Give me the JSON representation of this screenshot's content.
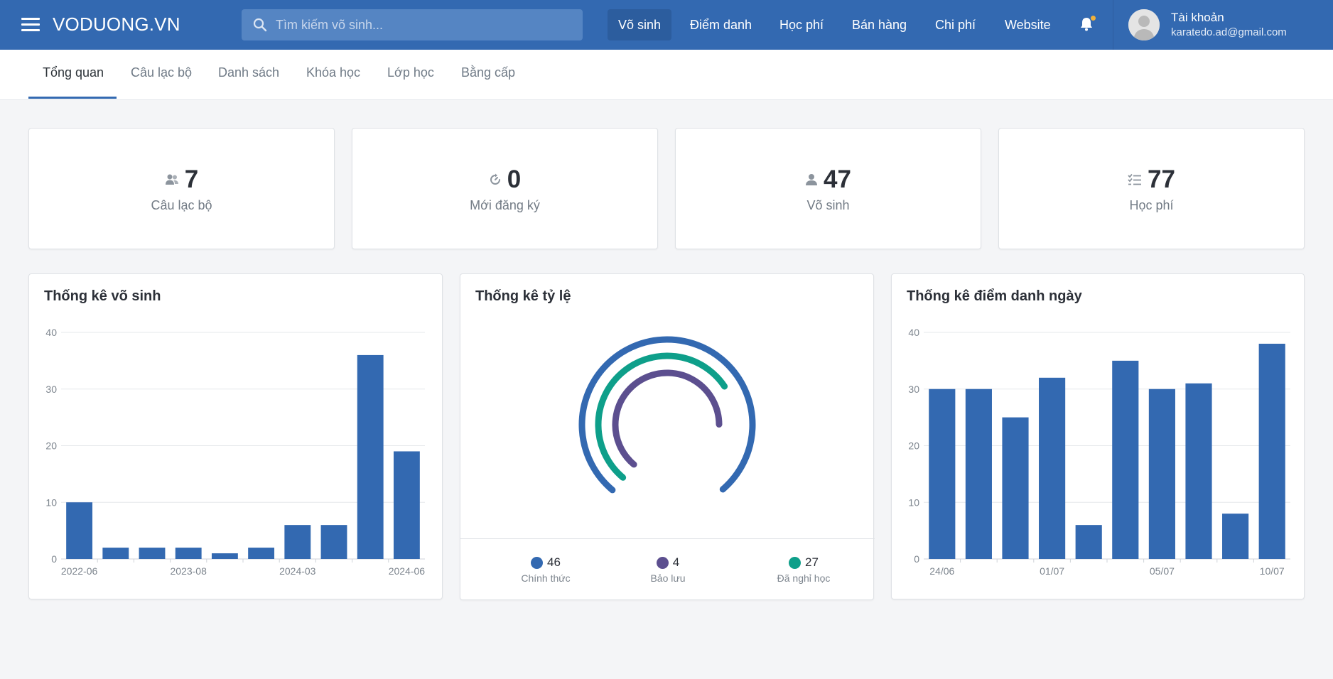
{
  "app": {
    "brand": "VODUONG.VN"
  },
  "search": {
    "placeholder": "Tìm kiếm võ sinh..."
  },
  "nav": {
    "items": [
      {
        "label": "Võ sinh",
        "active": true
      },
      {
        "label": "Điểm danh"
      },
      {
        "label": "Học phí"
      },
      {
        "label": "Bán hàng"
      },
      {
        "label": "Chi phí"
      },
      {
        "label": "Website"
      }
    ]
  },
  "account": {
    "name": "Tài khoản",
    "email": "karatedo.ad@gmail.com"
  },
  "tabs": [
    {
      "label": "Tổng quan",
      "active": true
    },
    {
      "label": "Câu lạc bộ"
    },
    {
      "label": "Danh sách"
    },
    {
      "label": "Khóa học"
    },
    {
      "label": "Lớp học"
    },
    {
      "label": "Bằng cấp"
    }
  ],
  "stats": [
    {
      "value": "7",
      "label": "Câu lạc bộ",
      "icon": "users-icon"
    },
    {
      "value": "0",
      "label": "Mới đăng ký",
      "icon": "refresh-icon"
    },
    {
      "value": "47",
      "label": "Võ sinh",
      "icon": "user-icon"
    },
    {
      "value": "77",
      "label": "Học phí",
      "icon": "list-check-icon"
    }
  ],
  "colors": {
    "primary": "#3369b1",
    "purple": "#5c4f8f",
    "teal": "#0e9f8a"
  },
  "chart_data": [
    {
      "type": "bar",
      "title": "Thống kê võ sinh",
      "categories": [
        "2022-06",
        "",
        "",
        "2023-08",
        "",
        "",
        "2024-03",
        "",
        "",
        "2024-06"
      ],
      "values": [
        10,
        2,
        2,
        2,
        1,
        2,
        6,
        6,
        36,
        19
      ],
      "ylim": [
        0,
        40
      ],
      "yticks": [
        0,
        10,
        20,
        30,
        40
      ],
      "grid": true
    },
    {
      "type": "pie",
      "title": "Thống kê tỷ lệ",
      "series": [
        {
          "name": "Chính thức",
          "value": 46,
          "color": "#3369b1"
        },
        {
          "name": "Bảo lưu",
          "value": 4,
          "color": "#5c4f8f"
        },
        {
          "name": "Đã nghỉ học",
          "value": 27,
          "color": "#0e9f8a"
        }
      ],
      "legend": "bottom"
    },
    {
      "type": "bar",
      "title": "Thống kê điểm danh ngày",
      "categories": [
        "24/06",
        "",
        "",
        "01/07",
        "",
        "",
        "05/07",
        "",
        "",
        "10/07"
      ],
      "values": [
        30,
        30,
        25,
        32,
        6,
        35,
        30,
        31,
        8,
        38
      ],
      "ylim": [
        0,
        40
      ],
      "yticks": [
        0,
        10,
        20,
        30,
        40
      ],
      "grid": true
    }
  ]
}
